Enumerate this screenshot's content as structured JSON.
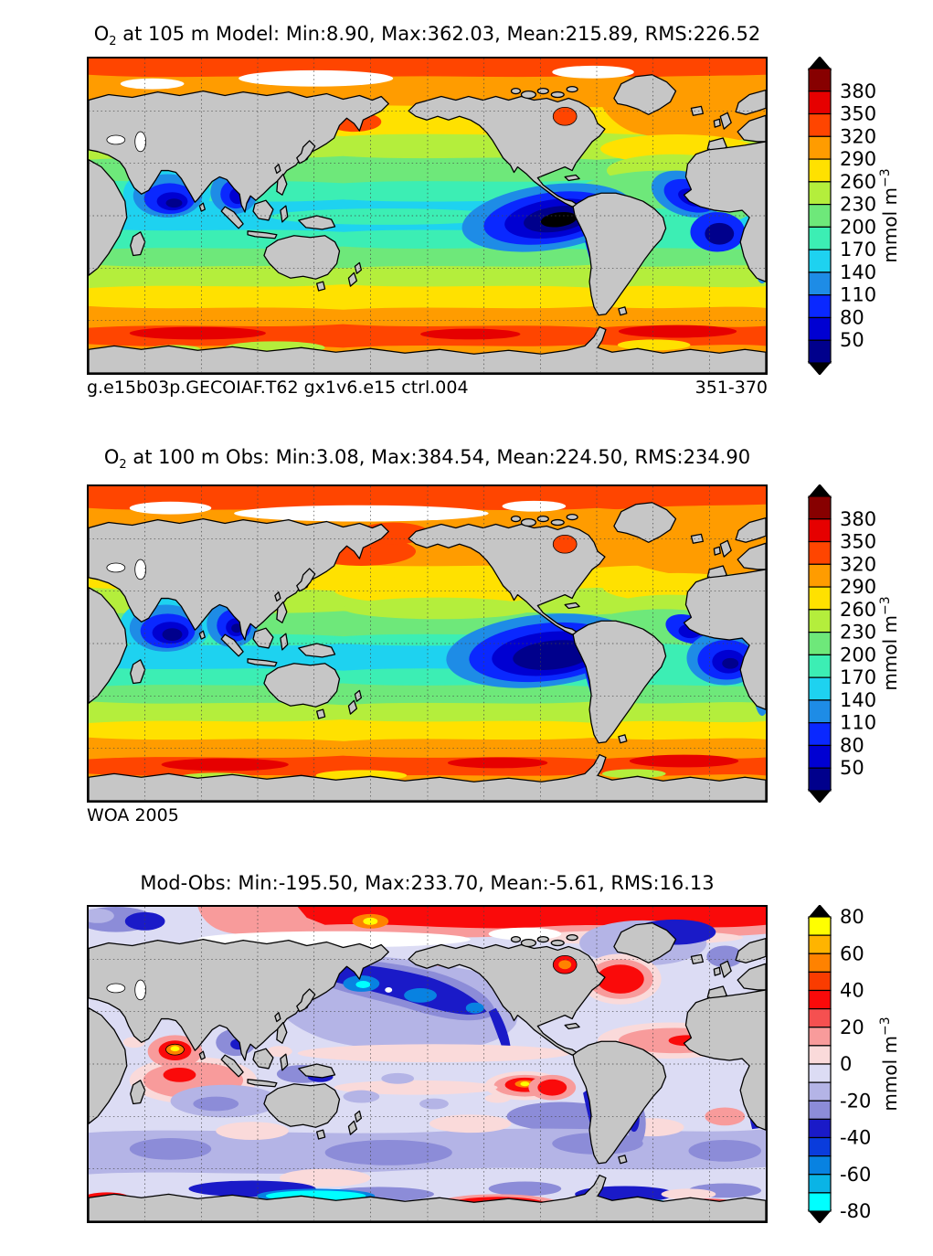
{
  "figure": {
    "background": "#ffffff",
    "land_color": "#c6c6c6",
    "coast_color": "#000000",
    "grid_style": "dashed graticule every 30 degrees"
  },
  "panels": [
    {
      "id": "model",
      "title": {
        "prefix": "O",
        "sub": "2",
        "rest": " at 105 m Model: Min:8.90, Max:362.03, Mean:215.89, RMS:226.52"
      },
      "footnote_left": "g.e15b03p.GECOIAF.T62 gx1v6.e15 ctrl.004",
      "footnote_right": "351-370",
      "colorbar": {
        "unit_base": "mmol m",
        "unit_sup": "−3",
        "arrow_top_color": "#000000",
        "arrow_bottom_color": "#000000",
        "colors": [
          "#870000",
          "#e60000",
          "#ff4500",
          "#ff9c00",
          "#ffe100",
          "#b4ee3c",
          "#6ee87a",
          "#3ceeb4",
          "#1ed2f0",
          "#1e8ce6",
          "#0a28ff",
          "#0000d2",
          "#00008c"
        ],
        "ticks": [
          {
            "label": "380",
            "t": 0.0769
          },
          {
            "label": "350",
            "t": 0.1538
          },
          {
            "label": "320",
            "t": 0.2308
          },
          {
            "label": "290",
            "t": 0.3077
          },
          {
            "label": "260",
            "t": 0.3846
          },
          {
            "label": "230",
            "t": 0.4615
          },
          {
            "label": "200",
            "t": 0.5385
          },
          {
            "label": "170",
            "t": 0.6154
          },
          {
            "label": "140",
            "t": 0.6923
          },
          {
            "label": "110",
            "t": 0.7692
          },
          {
            "label": "80",
            "t": 0.8462
          },
          {
            "label": "50",
            "t": 0.9231
          }
        ]
      }
    },
    {
      "id": "obs",
      "title": {
        "prefix": "O",
        "sub": "2",
        "rest": " at 100 m Obs: Min:3.08, Max:384.54, Mean:224.50, RMS:234.90"
      },
      "footnote_left": "WOA 2005",
      "footnote_right": "",
      "colorbar": {
        "unit_base": "mmol m",
        "unit_sup": "−3",
        "arrow_top_color": "#000000",
        "arrow_bottom_color": "#000000",
        "colors": [
          "#870000",
          "#e60000",
          "#ff4500",
          "#ff9c00",
          "#ffe100",
          "#b4ee3c",
          "#6ee87a",
          "#3ceeb4",
          "#1ed2f0",
          "#1e8ce6",
          "#0a28ff",
          "#0000d2",
          "#00008c"
        ],
        "ticks": [
          {
            "label": "380",
            "t": 0.0769
          },
          {
            "label": "350",
            "t": 0.1538
          },
          {
            "label": "320",
            "t": 0.2308
          },
          {
            "label": "290",
            "t": 0.3077
          },
          {
            "label": "260",
            "t": 0.3846
          },
          {
            "label": "230",
            "t": 0.4615
          },
          {
            "label": "200",
            "t": 0.5385
          },
          {
            "label": "170",
            "t": 0.6154
          },
          {
            "label": "140",
            "t": 0.6923
          },
          {
            "label": "110",
            "t": 0.7692
          },
          {
            "label": "80",
            "t": 0.8462
          },
          {
            "label": "50",
            "t": 0.9231
          }
        ]
      }
    },
    {
      "id": "diff",
      "title": {
        "prefix": "",
        "sub": "",
        "rest": "Mod-Obs: Min:-195.50, Max:233.70, Mean:-5.61, RMS:16.13"
      },
      "footnote_left": "",
      "footnote_right": "",
      "colorbar": {
        "unit_base": "mmol m",
        "unit_sup": "−3",
        "arrow_top_color": "#000000",
        "arrow_bottom_color": "#000000",
        "colors": [
          "#ffff00",
          "#ffb400",
          "#ff8200",
          "#fa3c00",
          "#fa0a0a",
          "#f55050",
          "#f89b9b",
          "#fadada",
          "#dcdcf4",
          "#b4b4e6",
          "#8c8cd8",
          "#1a1ac8",
          "#0a3cdc",
          "#0882e1",
          "#0ab4e6",
          "#00ffff"
        ],
        "ticks": [
          {
            "label": "80",
            "t": 0.0
          },
          {
            "label": "60",
            "t": 0.125
          },
          {
            "label": "40",
            "t": 0.25
          },
          {
            "label": "20",
            "t": 0.375
          },
          {
            "label": "0",
            "t": 0.5
          },
          {
            "label": "-20",
            "t": 0.625
          },
          {
            "label": "-40",
            "t": 0.75
          },
          {
            "label": "-60",
            "t": 0.875
          },
          {
            "label": "-80",
            "t": 1.0
          }
        ]
      }
    }
  ],
  "chart_data": [
    {
      "type": "heatmap",
      "subtype": "filled_contour_world_map",
      "title": "O2 at 105 m Model: Min:8.90, Max:362.03, Mean:215.89, RMS:226.52",
      "variable": "dissolved oxygen (O2)",
      "depth": "105 m",
      "dataset_label": "g.e15b03p.GECOIAF.T62 gx1v6.e15 ctrl.004",
      "time_label": "351-370",
      "stats": {
        "min": 8.9,
        "max": 362.03,
        "mean": 215.89,
        "rms": 226.52
      },
      "units": "mmol m^-3",
      "contour_levels": [
        20,
        50,
        80,
        110,
        140,
        170,
        200,
        230,
        260,
        290,
        320,
        350,
        380,
        410
      ],
      "palette_top_to_bottom": [
        "#870000",
        "#e60000",
        "#ff4500",
        "#ff9c00",
        "#ffe100",
        "#b4ee3c",
        "#6ee87a",
        "#3ceeb4",
        "#1ed2f0",
        "#1e8ce6",
        "#0a28ff",
        "#0000d2",
        "#00008c"
      ],
      "out_of_range_arrows": "black, both ends",
      "projection": "equirectangular, Pacific-centered (20E to 380E)",
      "lat_range": [
        -90,
        90
      ],
      "grid": "dashed graticule every 30 degrees",
      "land_color": "#c6c6c6",
      "features": "High O2 (orange/red ~290-380) in Arctic and Southern Ocean; mid values (green/cyan ~140-230) at mid-latitudes; very low O2 (dark blue/black <50) in Arabian Sea, Bay of Bengal, eastern tropical Pacific and eastern tropical Atlantic oxygen minimum zones"
    },
    {
      "type": "heatmap",
      "subtype": "filled_contour_world_map",
      "title": "O2 at 100 m Obs: Min:3.08, Max:384.54, Mean:224.50, RMS:234.90",
      "variable": "dissolved oxygen (O2)",
      "depth": "100 m",
      "dataset_label": "WOA 2005",
      "stats": {
        "min": 3.08,
        "max": 384.54,
        "mean": 224.5,
        "rms": 234.9
      },
      "units": "mmol m^-3",
      "contour_levels": [
        20,
        50,
        80,
        110,
        140,
        170,
        200,
        230,
        260,
        290,
        320,
        350,
        380,
        410
      ],
      "palette_top_to_bottom": [
        "#870000",
        "#e60000",
        "#ff4500",
        "#ff9c00",
        "#ffe100",
        "#b4ee3c",
        "#6ee87a",
        "#3ceeb4",
        "#1ed2f0",
        "#1e8ce6",
        "#0a28ff",
        "#0000d2",
        "#00008c"
      ],
      "out_of_range_arrows": "black, both ends",
      "projection": "equirectangular, Pacific-centered (20E to 380E)",
      "lat_range": [
        -90,
        90
      ],
      "grid": "dashed graticule every 30 degrees",
      "land_color": "#c6c6c6",
      "features": "Observed climatology: strong orange band in subarctic North Pacific and North Atlantic; larger and darker oxygen minimum zones in the eastern tropical Pacific, Arabian Sea and Bay of Bengal than the model"
    },
    {
      "type": "heatmap",
      "subtype": "filled_contour_world_map",
      "title": "Mod-Obs: Min:-195.50, Max:233.70, Mean:-5.61, RMS:16.13",
      "variable": "model minus observed O2 difference",
      "stats": {
        "min": -195.5,
        "max": 233.7,
        "mean": -5.61,
        "rms": 16.13
      },
      "units": "mmol m^-3",
      "contour_levels": [
        -80,
        -70,
        -60,
        -50,
        -40,
        -30,
        -20,
        -10,
        0,
        10,
        20,
        30,
        40,
        50,
        60,
        70,
        80
      ],
      "palette_top_to_bottom": [
        "#ffff00",
        "#ffb400",
        "#ff8200",
        "#fa3c00",
        "#fa0a0a",
        "#f55050",
        "#f89b9b",
        "#fadada",
        "#dcdcf4",
        "#b4b4e6",
        "#8c8cd8",
        "#1a1ac8",
        "#0a3cdc",
        "#0882e1",
        "#0ab4e6",
        "#00ffff"
      ],
      "out_of_range_arrows": "black, both ends",
      "projection": "equirectangular, Pacific-centered (20E to 380E)",
      "lat_range": [
        -90,
        90
      ],
      "grid": "dashed graticule every 30 degrees",
      "land_color": "#c6c6c6",
      "features": "Mostly pale blue-purple (small negative bias); strong negative (dark blue/cyan) in subarctic NW Pacific, along eastern boundary currents and near Antarctica; positive spots (red/yellow) in Arctic, Arabian Sea, equatorial Pacific, Labrador Sea and parts of the Southern Ocean"
    }
  ]
}
